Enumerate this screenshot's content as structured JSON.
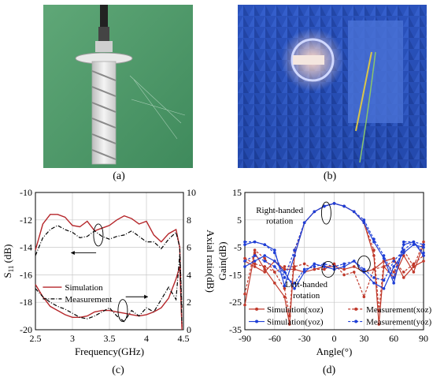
{
  "captions": {
    "a": "(a)",
    "b": "(b)",
    "c": "(c)",
    "d": "(d)"
  },
  "colors": {
    "simulation_c": "#b5262a",
    "measurement_c": "#000000",
    "sim_xoz": "#c0392b",
    "sim_yoz": "#1f3fd6",
    "meas_xoz": "#c0392b",
    "meas_yoz": "#1f3fd6"
  },
  "chart_data": [
    {
      "type": "line",
      "panel": "c",
      "xlabel": "Frequency(GHz)",
      "ylabel_left": "S11 (dB)",
      "ylabel_left_main": "S",
      "ylabel_left_sub": "11",
      "ylabel_left_rest": " (dB)",
      "ylabel_right": "Axial ratio(dB)",
      "xlim": [
        2.5,
        4.5
      ],
      "ylim_left": [
        -20,
        -10
      ],
      "ylim_right": [
        0,
        10
      ],
      "x_ticks": [
        "2.5",
        "3",
        "3.5",
        "4",
        "4.5"
      ],
      "y_left_ticks": [
        "-20",
        "-18",
        "-16",
        "-14",
        "-12",
        "-10"
      ],
      "y_right_ticks": [
        "0",
        "2",
        "4",
        "6",
        "8",
        "10"
      ],
      "grid": true,
      "legend": {
        "position": "center-left",
        "entries": [
          "Simulation",
          "Measurement"
        ]
      },
      "series": [
        {
          "name": "Simulation",
          "axis": "left",
          "style": "solid",
          "x": [
            2.5,
            2.6,
            2.7,
            2.8,
            2.9,
            3.0,
            3.1,
            3.2,
            3.3,
            3.4,
            3.5,
            3.6,
            3.7,
            3.8,
            3.9,
            4.0,
            4.1,
            4.2,
            4.3,
            4.4,
            4.45,
            4.48
          ],
          "y": [
            -14.2,
            -12.3,
            -11.6,
            -11.6,
            -11.8,
            -12.4,
            -12.5,
            -12.1,
            -12.8,
            -12.6,
            -12.4,
            -12.0,
            -11.7,
            -11.9,
            -12.3,
            -12.1,
            -13.1,
            -13.6,
            -13.0,
            -12.7,
            -14.0,
            -20.0
          ]
        },
        {
          "name": "Measurement",
          "axis": "left",
          "style": "dashdot",
          "x": [
            2.5,
            2.6,
            2.7,
            2.8,
            2.9,
            3.0,
            3.1,
            3.2,
            3.3,
            3.4,
            3.5,
            3.6,
            3.7,
            3.8,
            3.9,
            4.0,
            4.1,
            4.2,
            4.3,
            4.4,
            4.45,
            4.48
          ],
          "y": [
            -14.6,
            -13.3,
            -12.7,
            -12.4,
            -12.7,
            -12.9,
            -13.3,
            -13.2,
            -12.8,
            -13.2,
            -13.4,
            -13.2,
            -13.1,
            -12.8,
            -13.2,
            -13.6,
            -13.6,
            -14.1,
            -13.4,
            -12.9,
            -14.0,
            -18.5
          ]
        },
        {
          "name": "Simulation",
          "axis": "right",
          "style": "solid",
          "x": [
            2.5,
            2.6,
            2.7,
            2.8,
            2.9,
            3.0,
            3.1,
            3.2,
            3.3,
            3.4,
            3.5,
            3.6,
            3.7,
            3.8,
            3.9,
            4.0,
            4.1,
            4.2,
            4.3,
            4.4,
            4.45,
            4.48
          ],
          "y": [
            3.3,
            2.4,
            1.7,
            1.4,
            1.1,
            0.9,
            0.9,
            1.0,
            1.3,
            1.4,
            1.4,
            1.3,
            1.2,
            1.1,
            1.0,
            1.1,
            1.3,
            1.6,
            2.3,
            3.7,
            4.6,
            0.2
          ]
        },
        {
          "name": "Measurement",
          "axis": "right",
          "style": "dashdot",
          "x": [
            2.5,
            2.6,
            2.7,
            2.8,
            2.9,
            3.0,
            3.1,
            3.2,
            3.3,
            3.4,
            3.5,
            3.6,
            3.7,
            3.8,
            3.9,
            4.0,
            4.1,
            4.2,
            4.3,
            4.4,
            4.45,
            4.48
          ],
          "y": [
            3.0,
            2.4,
            2.0,
            1.7,
            1.5,
            1.2,
            0.9,
            0.8,
            1.0,
            1.3,
            1.6,
            1.0,
            0.6,
            1.4,
            1.0,
            1.6,
            1.3,
            2.2,
            3.1,
            2.2,
            5.5,
            0.4
          ]
        }
      ]
    },
    {
      "type": "line",
      "panel": "d",
      "xlabel": "Angle(°)",
      "ylabel": "Gain(dB)",
      "xlim": [
        -90,
        90
      ],
      "ylim": [
        -35,
        15
      ],
      "x_ticks": [
        "-90",
        "-60",
        "-30",
        "0",
        "30",
        "60",
        "90"
      ],
      "y_ticks": [
        "-35",
        "-25",
        "-15",
        "-5",
        "5",
        "15"
      ],
      "grid": true,
      "annotations": [
        {
          "text": "Right-handed",
          "line2": "rotation"
        },
        {
          "text": "Left-handed",
          "line2": "rotation"
        }
      ],
      "legend": {
        "position": "bottom",
        "entries": [
          "Simulation(xoz)",
          "Measurement(xoz)",
          "Simulation(yoz)",
          "Measurement(yoz)"
        ]
      },
      "series": [
        {
          "name": "Simulation(xoz)",
          "style": "solid",
          "marker": "circle",
          "x": [
            -90,
            -80,
            -70,
            -60,
            -50,
            -45,
            -40,
            -30,
            -20,
            -10,
            0,
            10,
            20,
            30,
            40,
            45,
            50,
            60,
            70,
            80,
            90
          ],
          "y": [
            -26,
            -7,
            -13,
            -18,
            -23,
            -33,
            -8,
            4,
            8,
            10,
            11,
            10,
            8,
            4,
            -8,
            -33,
            -12,
            -16,
            -8,
            -14,
            -4
          ]
        },
        {
          "name": "Simulation(xoz)",
          "style": "solid",
          "marker": "circle",
          "x": [
            -90,
            -80,
            -70,
            -60,
            -50,
            -40,
            -30,
            -20,
            -10,
            0,
            10,
            20,
            30,
            40,
            50,
            60,
            70,
            80,
            90
          ],
          "y": [
            -10,
            -12,
            -14,
            -10,
            -13,
            -13,
            -14,
            -13,
            -12,
            -12,
            -13,
            -12,
            -14,
            -13,
            -10,
            -9,
            -16,
            -12,
            -10
          ]
        },
        {
          "name": "Measurement(xoz)",
          "style": "dashed",
          "marker": "circle",
          "x": [
            -90,
            -80,
            -70,
            -60,
            -50,
            -45,
            -40,
            -30,
            -20,
            -10,
            0,
            10,
            20,
            30,
            40,
            45,
            50,
            60,
            70,
            80,
            90
          ],
          "y": [
            -22,
            -6,
            -9,
            -14,
            -20,
            -30,
            -6,
            4,
            8,
            10,
            11,
            10,
            8,
            4,
            -6,
            -28,
            -10,
            -14,
            -6,
            -12,
            -3
          ]
        },
        {
          "name": "Measurement(xoz)",
          "style": "dashed",
          "marker": "circle",
          "x": [
            -90,
            -80,
            -70,
            -60,
            -50,
            -40,
            -30,
            -20,
            -10,
            0,
            10,
            20,
            30,
            40,
            50,
            60,
            70,
            80,
            90
          ],
          "y": [
            -9,
            -11,
            -12,
            -14,
            -12,
            -12,
            -11,
            -13,
            -13,
            -11,
            -15,
            -14,
            -23,
            -13,
            -12,
            -10,
            -14,
            -11,
            -8
          ]
        },
        {
          "name": "Simulation(yoz)",
          "style": "solid",
          "marker": "circle",
          "x": [
            -90,
            -80,
            -70,
            -60,
            -50,
            -40,
            -30,
            -20,
            -10,
            0,
            10,
            20,
            30,
            40,
            50,
            60,
            70,
            80,
            90
          ],
          "y": [
            -4,
            -3,
            -4,
            -6,
            -19,
            -8,
            4,
            8,
            10,
            11,
            10,
            8,
            4,
            -3,
            -9,
            -18,
            -4,
            -3,
            -8
          ]
        },
        {
          "name": "Simulation(yoz)",
          "style": "solid",
          "marker": "circle",
          "x": [
            -90,
            -80,
            -70,
            -60,
            -50,
            -40,
            -30,
            -20,
            -10,
            0,
            10,
            20,
            30,
            40,
            50,
            60,
            70,
            80,
            90
          ],
          "y": [
            -12,
            -10,
            -8,
            -10,
            -14,
            -20,
            -14,
            -11,
            -12,
            -13,
            -12,
            -10,
            -14,
            -18,
            -20,
            -12,
            -7,
            -4,
            -5
          ]
        },
        {
          "name": "Measurement(yoz)",
          "style": "dashed",
          "marker": "circle",
          "x": [
            -90,
            -80,
            -70,
            -60,
            -50,
            -40,
            -30,
            -20,
            -10,
            0,
            10,
            20,
            30,
            40,
            50,
            60,
            70,
            80,
            90
          ],
          "y": [
            -3,
            -3,
            -4,
            -7,
            -16,
            -6,
            4,
            8,
            10,
            11,
            10,
            8,
            5,
            -2,
            -8,
            -16,
            -3,
            -3,
            -7
          ]
        },
        {
          "name": "Measurement(yoz)",
          "style": "dashed",
          "marker": "circle",
          "x": [
            -90,
            -80,
            -70,
            -60,
            -50,
            -40,
            -30,
            -20,
            -10,
            0,
            10,
            20,
            30,
            40,
            50,
            60,
            70,
            80,
            90
          ],
          "y": [
            -10,
            -8,
            -10,
            -12,
            -16,
            -18,
            -13,
            -12,
            -11,
            -12,
            -11,
            -10,
            -13,
            -16,
            -17,
            -10,
            -6,
            -3,
            -4
          ]
        }
      ]
    }
  ]
}
